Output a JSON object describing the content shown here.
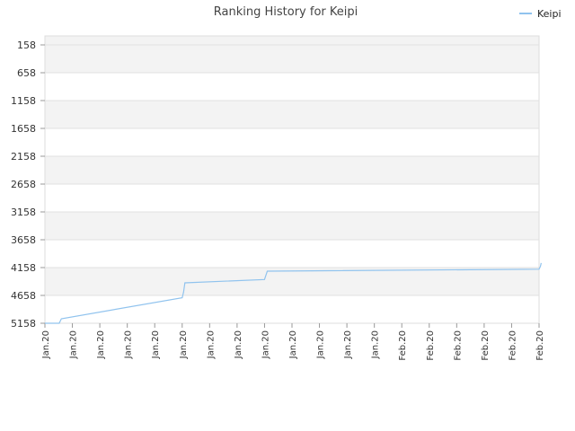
{
  "chart_data": {
    "type": "line",
    "title": "Ranking History for Keipi",
    "xlabel": "",
    "ylabel": "",
    "y_inverted": true,
    "ylim": [
      5158,
      158
    ],
    "y_ticks": [
      "158",
      "658",
      "1158",
      "1658",
      "2158",
      "2658",
      "3158",
      "3658",
      "4158",
      "4658",
      "5158"
    ],
    "x_ticks": [
      "Jan.20",
      "Jan.20",
      "Jan.20",
      "Jan.20",
      "Jan.20",
      "Jan.20",
      "Jan.20",
      "Jan.20",
      "Jan.20",
      "Jan.20",
      "Jan.20",
      "Jan.20",
      "Jan.20",
      "Feb.20",
      "Feb.20",
      "Feb.20",
      "Feb.20",
      "Feb.20",
      "Feb.20"
    ],
    "grid": true,
    "legend": "top-right",
    "series": [
      {
        "name": "Keipi",
        "color": "#90c3ee",
        "x": [
          0,
          0.3,
          0.52,
          0.6,
          5.0,
          5.05,
          5.1,
          8.0,
          8.05,
          8.1,
          18.0,
          18.05,
          18.08
        ],
        "y": [
          5158,
          5158,
          5158,
          5078,
          4700,
          4600,
          4432,
          4372,
          4294,
          4222,
          4187,
          4137,
          4076
        ]
      }
    ]
  }
}
